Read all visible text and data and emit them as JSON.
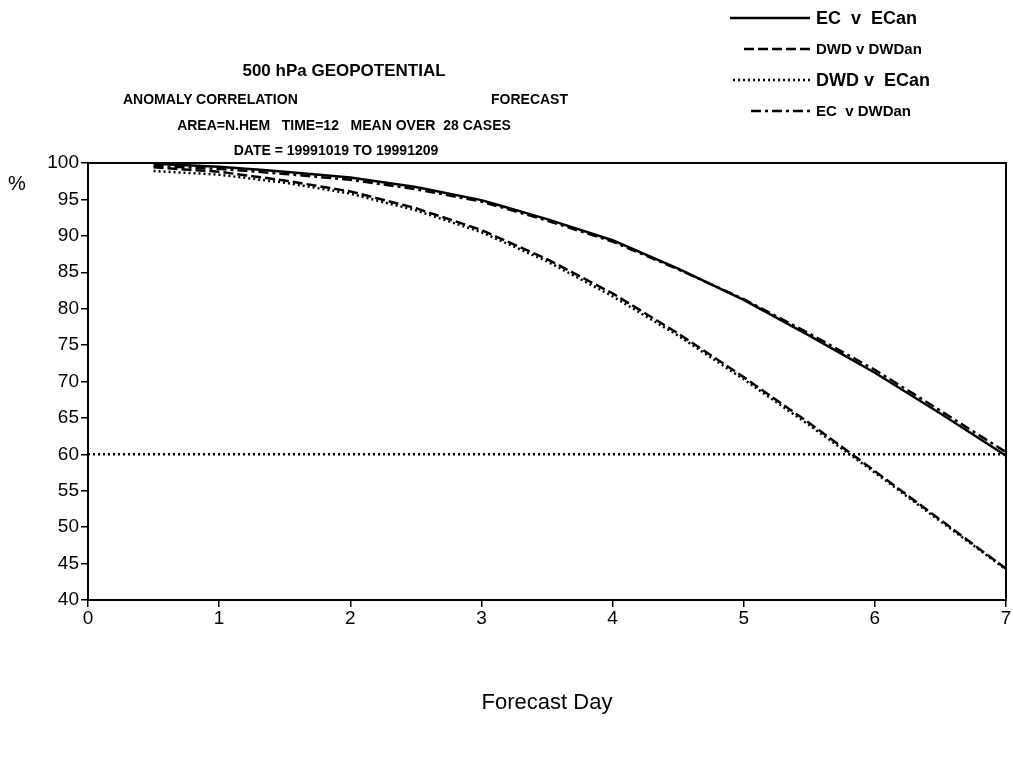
{
  "chart_data": {
    "type": "line",
    "title": "500 hPa GEOPOTENTIAL",
    "subtitle": "ANOMALY CORRELATION",
    "annotations": [
      "FORECAST",
      "AREA=N.HEM   TIME=12   MEAN OVER  28 CASES",
      "DATE = 19991019 TO 19991209"
    ],
    "xlabel": "Forecast Day",
    "ylabel": "%",
    "x": [
      0.5,
      1,
      1.5,
      2,
      2.5,
      3,
      3.5,
      4,
      4.5,
      5,
      5.5,
      6,
      6.5,
      7
    ],
    "series": [
      {
        "name": "EC  v  ECan",
        "color": "#000000",
        "line_style": "solid",
        "values": [
          99.9,
          99.5,
          98.8,
          98.0,
          96.7,
          94.9,
          92.3,
          89.4,
          85.5,
          81.2,
          76.3,
          71.2,
          65.6,
          59.8
        ]
      },
      {
        "name": "DWD v DWDan",
        "color": "#000000",
        "line_style": "dashed",
        "values": [
          99.4,
          98.8,
          97.6,
          96.1,
          93.8,
          90.8,
          86.8,
          82.1,
          76.6,
          70.6,
          64.3,
          57.7,
          51.0,
          44.3
        ]
      },
      {
        "name": "DWD v  ECan",
        "color": "#000000",
        "line_style": "dotted",
        "values": [
          98.9,
          98.4,
          97.3,
          95.8,
          93.5,
          90.5,
          86.5,
          81.7,
          76.3,
          70.3,
          64.0,
          57.5,
          50.8,
          44.2
        ]
      },
      {
        "name": "EC  v DWDan",
        "color": "#000000",
        "line_style": "dashdot",
        "values": [
          99.6,
          99.2,
          98.5,
          97.7,
          96.4,
          94.7,
          92.1,
          89.2,
          85.4,
          81.3,
          76.6,
          71.6,
          66.0,
          60.3
        ]
      }
    ],
    "xlim": [
      0,
      7
    ],
    "xticks": [
      0,
      1,
      2,
      3,
      4,
      5,
      6,
      7
    ],
    "ylim": [
      40,
      100
    ],
    "yticks": [
      40,
      45,
      50,
      55,
      60,
      65,
      70,
      75,
      80,
      85,
      90,
      95,
      100
    ],
    "ref_lines": [
      {
        "axis": "y",
        "value": 60,
        "line_style": "dotted",
        "color": "#000000"
      }
    ],
    "grid": false,
    "legend": "top right",
    "marker": "none"
  }
}
